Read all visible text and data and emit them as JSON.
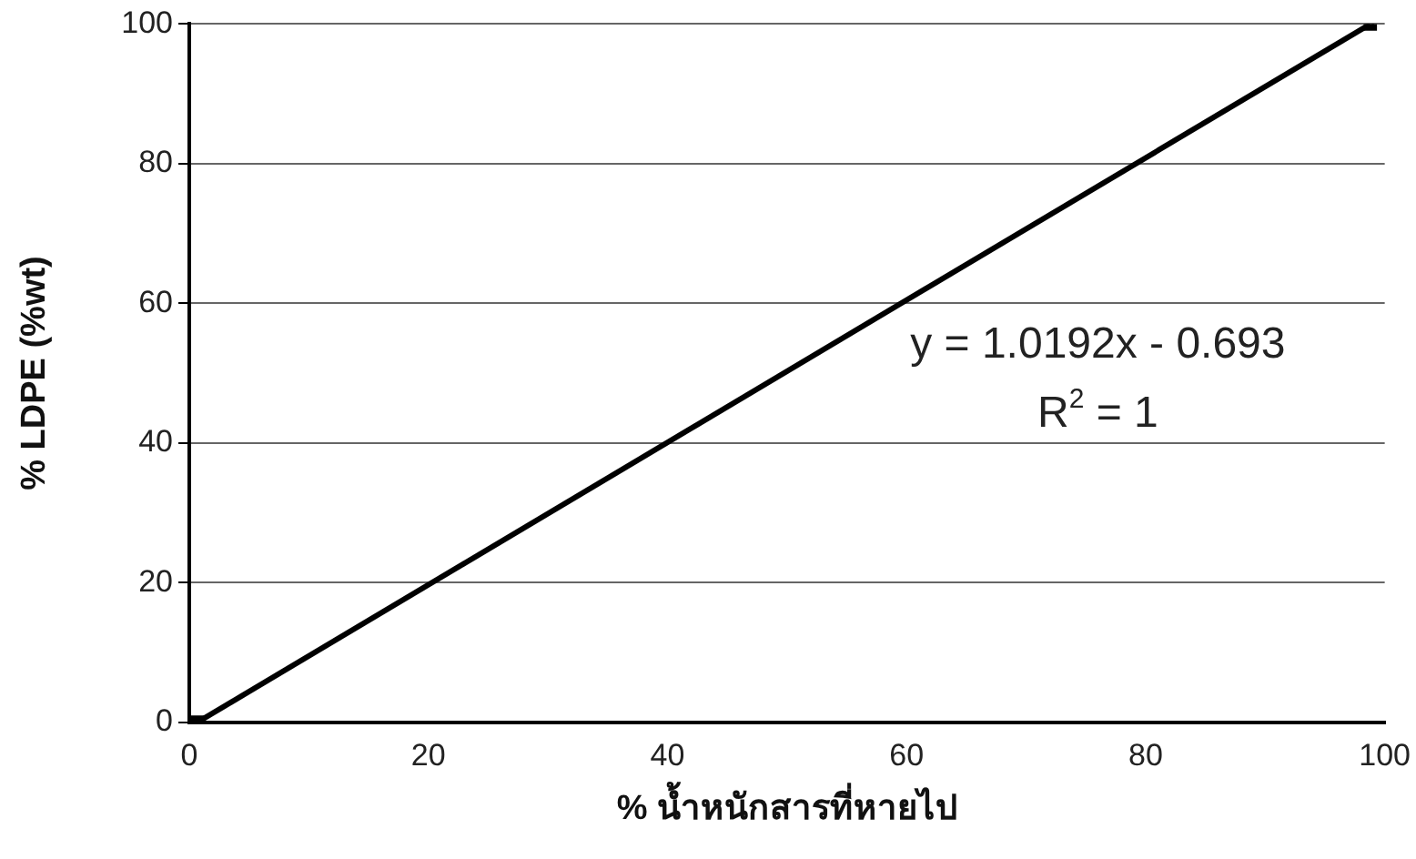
{
  "chart_data": {
    "type": "line",
    "xlabel": "% น้ำหนักสารที่หายไป",
    "ylabel": "% LDPE (%wt)",
    "series": [
      {
        "color": "#000000",
        "x": [
          0.7,
          98.8
        ],
        "values": [
          0,
          100
        ]
      }
    ],
    "marker": "square",
    "xlim": [
      0,
      100
    ],
    "xticks": [
      0,
      20,
      40,
      60,
      80,
      100
    ],
    "ylim": [
      0,
      100
    ],
    "yticks": [
      0,
      20,
      40,
      60,
      80,
      100
    ],
    "grid": "y",
    "legend": false,
    "annotations": [
      "y = 1.0192x - 0.693",
      "R$^{2}$ = 1"
    ]
  }
}
